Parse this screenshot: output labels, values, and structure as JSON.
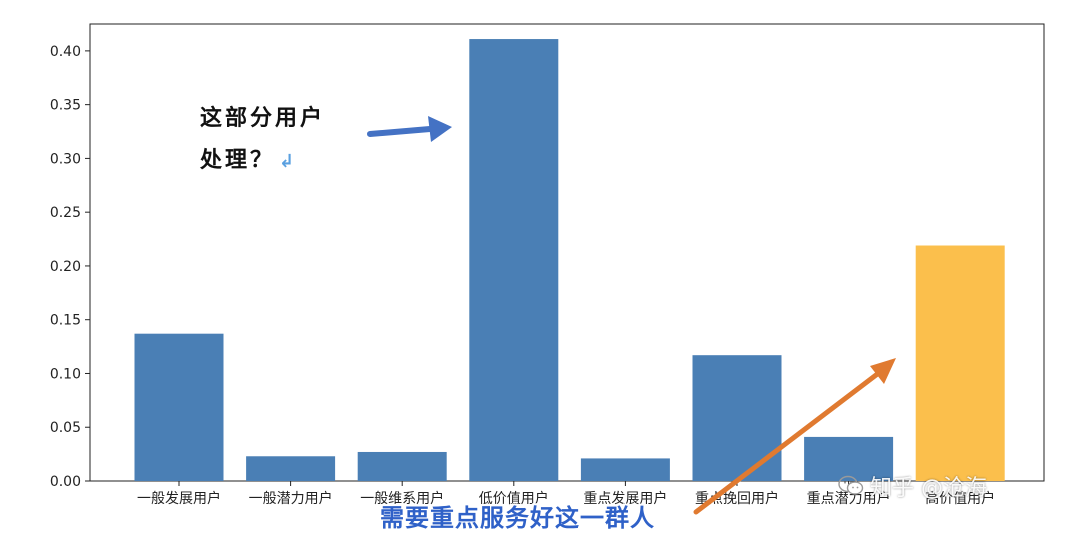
{
  "chart_data": {
    "type": "bar",
    "categories": [
      "一般发展用户",
      "一般潜力用户",
      "一般维系用户",
      "低价值用户",
      "重点发展用户",
      "重点挽回用户",
      "重点潜力用户",
      "高价值用户"
    ],
    "values": [
      0.137,
      0.023,
      0.027,
      0.411,
      0.021,
      0.117,
      0.041,
      0.219
    ],
    "bar_colors": [
      "#4a7fb5",
      "#4a7fb5",
      "#4a7fb5",
      "#4a7fb5",
      "#4a7fb5",
      "#4a7fb5",
      "#4a7fb5",
      "#fbbf4c"
    ],
    "yticks": [
      "0.00",
      "0.05",
      "0.10",
      "0.15",
      "0.20",
      "0.25",
      "0.30",
      "0.35",
      "0.40"
    ],
    "ylim": [
      0,
      0.425
    ],
    "grid": false,
    "title": "",
    "xlabel": "",
    "ylabel": ""
  },
  "annotations": {
    "left_text_line1": "这部分用户",
    "left_text_line2": "处理？",
    "return_mark": "↲",
    "left_arrow_color": "#4472c4",
    "right_arrow_color": "#e07a30"
  },
  "subtitle": "需要重点服务好这一群人",
  "watermark": {
    "icon": "wechat-icon",
    "text": "知乎 @沧海"
  }
}
